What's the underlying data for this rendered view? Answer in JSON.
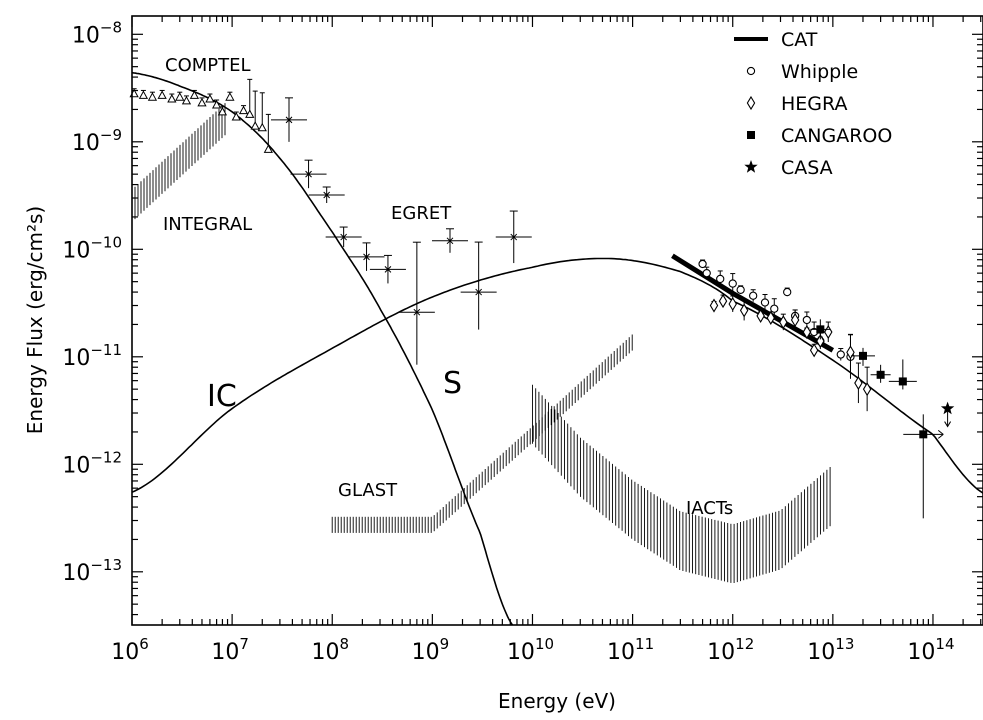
{
  "chart_data": {
    "type": "scatter",
    "xlabel": "Energy (eV)",
    "ylabel": "Energy Flux (erg/cm²s)",
    "x_scale": "log",
    "y_scale": "log",
    "xlim": [
      1000000.0,
      316000000000000.0
    ],
    "ylim": [
      3.2e-14,
      1.48e-08
    ],
    "x_ticks": [
      {
        "base": "10",
        "exp": "6"
      },
      {
        "base": "10",
        "exp": "7"
      },
      {
        "base": "10",
        "exp": "8"
      },
      {
        "base": "10",
        "exp": "9"
      },
      {
        "base": "10",
        "exp": "10"
      },
      {
        "base": "10",
        "exp": "11"
      },
      {
        "base": "10",
        "exp": "12"
      },
      {
        "base": "10",
        "exp": "13"
      },
      {
        "base": "10",
        "exp": "14"
      }
    ],
    "y_ticks": [
      {
        "base": "10",
        "exp": "−8"
      },
      {
        "base": "10",
        "exp": "−9"
      },
      {
        "base": "10",
        "exp": "−10"
      },
      {
        "base": "10",
        "exp": "−11"
      },
      {
        "base": "10",
        "exp": "−12"
      },
      {
        "base": "10",
        "exp": "−13"
      }
    ],
    "legend_position": "top-right",
    "legend": [
      {
        "label": "CAT",
        "symbol": "thick-line"
      },
      {
        "label": "Whipple",
        "symbol": "open-circle"
      },
      {
        "label": "HEGRA",
        "symbol": "open-diamond"
      },
      {
        "label": "CANGAROO",
        "symbol": "filled-square"
      },
      {
        "label": "CASA",
        "symbol": "filled-star"
      }
    ],
    "annotations": {
      "comptel": "COMPTEL",
      "integral": "INTEGRAL",
      "egret": "EGRET",
      "ic": "IC",
      "s": "S",
      "glast": "GLAST",
      "iacts": "IACTs"
    },
    "models": {
      "synchrotron": {
        "label": "S",
        "points": [
          [
            1000000.0,
            4.4e-09
          ],
          [
            3000000.0,
            3.3e-09
          ],
          [
            10000000.0,
            1.9e-09
          ],
          [
            30000000.0,
            7e-10
          ],
          [
            100000000.0,
            1.45e-10
          ],
          [
            300000000.0,
            2.8e-11
          ],
          [
            1000000000.0,
            3.2e-12
          ],
          [
            3000000000.0,
            2.3e-13
          ],
          [
            6300000000.0,
            3.2e-14
          ]
        ]
      },
      "inverse_compton": {
        "label": "IC",
        "points": [
          [
            1000000.0,
            5.5e-13
          ],
          [
            10000000.0,
            3.3e-12
          ],
          [
            100000000.0,
            1.2e-11
          ],
          [
            1000000000.0,
            3.6e-11
          ],
          [
            10000000000.0,
            6.8e-11
          ],
          [
            60000000000.0,
            8.2e-11
          ],
          [
            300000000000.0,
            6.2e-11
          ],
          [
            1000000000000.0,
            3.3e-11
          ],
          [
            10000000000000.0,
            9.3e-12
          ],
          [
            100000000000000.0,
            1.9e-12
          ],
          [
            316000000000000.0,
            5.4e-13
          ]
        ]
      }
    },
    "series": [
      {
        "name": "CAT",
        "style": "thick-line",
        "points": [
          [
            250000000000.0,
            8.7e-11
          ],
          [
            1000000000000.0,
            3.9e-11
          ],
          [
            10000000000000.0,
            1.15e-11
          ]
        ]
      },
      {
        "name": "Whipple",
        "style": "open-circle",
        "points": [
          [
            500000000000.0,
            7.3e-11
          ],
          [
            550000000000.0,
            6e-11
          ],
          [
            750000000000.0,
            5.3e-11
          ],
          [
            1000000000000.0,
            4.8e-11
          ],
          [
            1200000000000.0,
            4.2e-11
          ],
          [
            1600000000000.0,
            3.7e-11
          ],
          [
            2100000000000.0,
            3.2e-11
          ],
          [
            2600000000000.0,
            2.8e-11
          ],
          [
            3500000000000.0,
            4e-11
          ],
          [
            4200000000000.0,
            2.4e-11
          ],
          [
            5500000000000.0,
            2.2e-11
          ],
          [
            6500000000000.0,
            1.7e-11
          ],
          [
            7500000000000.0,
            1.4e-11
          ],
          [
            12000000000000.0,
            1.05e-11
          ],
          [
            15000000000000.0,
            1e-11
          ]
        ]
      },
      {
        "name": "HEGRA",
        "style": "open-diamond",
        "points": [
          [
            650000000000.0,
            3e-11
          ],
          [
            800000000000.0,
            3.3e-11
          ],
          [
            1000000000000.0,
            3.1e-11
          ],
          [
            1300000000000.0,
            2.7e-11
          ],
          [
            1900000000000.0,
            2.4e-11
          ],
          [
            2400000000000.0,
            2.3e-11
          ],
          [
            3200000000000.0,
            2.1e-11
          ],
          [
            4200000000000.0,
            2.2e-11
          ],
          [
            5500000000000.0,
            1.7e-11
          ],
          [
            6500000000000.0,
            1.15e-11
          ],
          [
            7500000000000.0,
            1.4e-11
          ],
          [
            9000000000000.0,
            1.7e-11
          ],
          [
            15000000000000.0,
            1.1e-11
          ],
          [
            18000000000000.0,
            5.7e-12
          ],
          [
            22000000000000.0,
            5e-12
          ]
        ]
      },
      {
        "name": "CANGAROO",
        "style": "filled-square",
        "points": [
          [
            7500000000000.0,
            1.8e-11
          ],
          [
            20000000000000.0,
            1.02e-11
          ],
          [
            30000000000000.0,
            6.8e-12
          ],
          [
            50000000000000.0,
            5.9e-12
          ],
          [
            80000000000000.0,
            1.9e-12
          ]
        ]
      },
      {
        "name": "CASA",
        "style": "filled-star",
        "points": [
          [
            140000000000000.0,
            3.3e-12
          ]
        ]
      },
      {
        "name": "COMPTEL",
        "style": "open-triangle",
        "points": [
          [
            1050000.0,
            2.8e-09
          ],
          [
            1300000.0,
            2.7e-09
          ],
          [
            1600000.0,
            2.6e-09
          ],
          [
            2000000.0,
            2.7e-09
          ],
          [
            2500000.0,
            2.5e-09
          ],
          [
            3000000.0,
            2.6e-09
          ],
          [
            3500000.0,
            2.4e-09
          ],
          [
            4200000.0,
            2.7e-09
          ],
          [
            5000000.0,
            2.3e-09
          ],
          [
            6000000.0,
            2.5e-09
          ],
          [
            7000000.0,
            2.2e-09
          ],
          [
            8000000.0,
            1.9e-09
          ],
          [
            9500000.0,
            2.6e-09
          ],
          [
            11000000.0,
            1.7e-09
          ],
          [
            13000000.0,
            1.95e-09
          ],
          [
            15000000.0,
            1.8e-09
          ],
          [
            17000000.0,
            1.4e-09
          ],
          [
            20000000.0,
            1.35e-09
          ],
          [
            23000000.0,
            8.5e-10
          ]
        ]
      },
      {
        "name": "EGRET",
        "style": "cross",
        "points": [
          [
            37000000.0,
            1.6e-09
          ],
          [
            58000000.0,
            5e-10
          ],
          [
            88000000.0,
            3.2e-10
          ],
          [
            130000000.0,
            1.3e-10
          ],
          [
            220000000.0,
            8.5e-11
          ],
          [
            360000000.0,
            6.5e-11
          ],
          [
            700000000.0,
            2.6e-11
          ],
          [
            1500000000.0,
            1.2e-10
          ],
          [
            2900000000.0,
            4e-11
          ],
          [
            6500000000.0,
            1.3e-10
          ]
        ]
      }
    ],
    "sensitivity_bands": {
      "integral": {
        "label": "INTEGRAL",
        "points": [
          [
            1000000.0,
            1.8e-10
          ],
          [
            8500000.0,
            1.15e-09
          ]
        ],
        "width_dex": 0.3
      },
      "glast": {
        "label": "GLAST",
        "points": [
          [
            100000000.0,
            2.3e-13
          ],
          [
            1000000000.0,
            2.3e-13
          ],
          [
            10000000000.0,
            1.6e-12
          ],
          [
            100000000000.0,
            1.15e-11
          ]
        ],
        "width_dex": 0.15
      },
      "iacts": {
        "label": "IACTs",
        "points": [
          [
            10000000000.0,
            1.55e-12
          ],
          [
            30000000000.0,
            5e-13
          ],
          [
            100000000000.0,
            2e-13
          ],
          [
            300000000000.0,
            1.03e-13
          ],
          [
            1000000000000.0,
            7.8e-14
          ],
          [
            3000000000000.0,
            1.05e-13
          ],
          [
            10000000000000.0,
            2.8e-13
          ]
        ],
        "width_dex": 0.55
      }
    }
  }
}
